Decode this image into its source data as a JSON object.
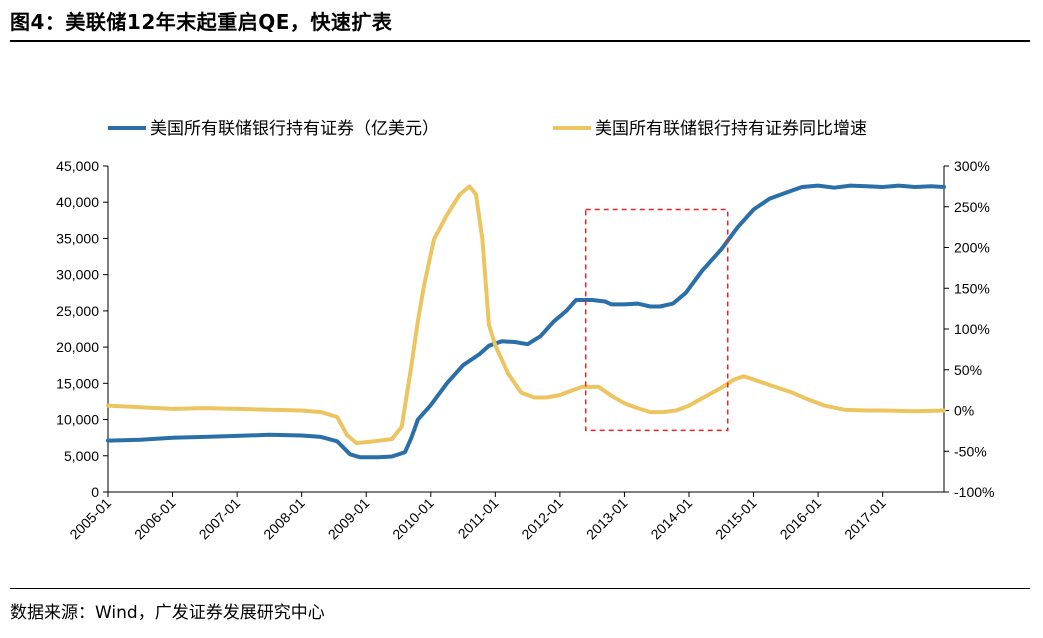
{
  "figure": {
    "title": "图4：美联储12年末起重启QE，快速扩表",
    "source": "数据来源：Wind，广发证券发展研究中心"
  },
  "colors": {
    "holdings": "#2a6fa8",
    "yoy": "#ecc561",
    "highlight_box": "#e8232a",
    "axis": "#000000"
  },
  "chart_data": {
    "type": "line",
    "legend_position": "top",
    "grid": false,
    "x_tick_labels": [
      "2005-01",
      "2006-01",
      "2007-01",
      "2008-01",
      "2009-01",
      "2010-01",
      "2011-01",
      "2012-01",
      "2013-01",
      "2014-01",
      "2015-01",
      "2016-01",
      "2017-01"
    ],
    "x_range": [
      2005.0,
      2017.95
    ],
    "y_left": {
      "range": [
        0,
        45000
      ],
      "tick_labels": [
        "0",
        "5,000",
        "10,000",
        "15,000",
        "20,000",
        "25,000",
        "30,000",
        "35,000",
        "40,000",
        "45,000"
      ]
    },
    "y_right": {
      "range": [
        -100,
        300
      ],
      "tick_labels": [
        "-100%",
        "-50%",
        "0%",
        "50%",
        "100%",
        "150%",
        "200%",
        "250%",
        "300%"
      ]
    },
    "highlight_region": {
      "x": [
        2012.4,
        2014.6
      ],
      "y_left": [
        8500,
        39000
      ],
      "style": "dashed"
    },
    "series": [
      {
        "name": "美国所有联储银行持有证券（亿美元）",
        "axis": "left",
        "points": [
          [
            2005.0,
            7100
          ],
          [
            2005.5,
            7200
          ],
          [
            2006.0,
            7500
          ],
          [
            2006.5,
            7600
          ],
          [
            2007.0,
            7750
          ],
          [
            2007.5,
            7900
          ],
          [
            2008.0,
            7800
          ],
          [
            2008.3,
            7600
          ],
          [
            2008.55,
            7000
          ],
          [
            2008.75,
            5200
          ],
          [
            2008.9,
            4800
          ],
          [
            2009.2,
            4800
          ],
          [
            2009.4,
            4900
          ],
          [
            2009.6,
            5500
          ],
          [
            2009.7,
            7500
          ],
          [
            2009.8,
            10000
          ],
          [
            2010.0,
            12000
          ],
          [
            2010.25,
            15000
          ],
          [
            2010.5,
            17500
          ],
          [
            2010.75,
            19000
          ],
          [
            2010.9,
            20200
          ],
          [
            2011.1,
            20800
          ],
          [
            2011.3,
            20700
          ],
          [
            2011.5,
            20400
          ],
          [
            2011.7,
            21500
          ],
          [
            2011.9,
            23500
          ],
          [
            2012.1,
            25000
          ],
          [
            2012.25,
            26500
          ],
          [
            2012.5,
            26500
          ],
          [
            2012.7,
            26300
          ],
          [
            2012.8,
            25900
          ],
          [
            2013.0,
            25900
          ],
          [
            2013.2,
            26000
          ],
          [
            2013.4,
            25600
          ],
          [
            2013.55,
            25600
          ],
          [
            2013.75,
            26000
          ],
          [
            2013.95,
            27500
          ],
          [
            2014.2,
            30500
          ],
          [
            2014.5,
            33500
          ],
          [
            2014.75,
            36500
          ],
          [
            2015.0,
            39000
          ],
          [
            2015.25,
            40500
          ],
          [
            2015.5,
            41300
          ],
          [
            2015.75,
            42100
          ],
          [
            2016.0,
            42300
          ],
          [
            2016.25,
            42000
          ],
          [
            2016.5,
            42300
          ],
          [
            2016.75,
            42200
          ],
          [
            2017.0,
            42100
          ],
          [
            2017.25,
            42300
          ],
          [
            2017.5,
            42100
          ],
          [
            2017.75,
            42200
          ],
          [
            2017.95,
            42100
          ]
        ]
      },
      {
        "name": "美国所有联储银行持有证券同比增速",
        "axis": "right",
        "points": [
          [
            2005.0,
            6
          ],
          [
            2005.5,
            4
          ],
          [
            2006.0,
            2
          ],
          [
            2006.5,
            3
          ],
          [
            2007.0,
            2
          ],
          [
            2007.5,
            1
          ],
          [
            2008.0,
            0
          ],
          [
            2008.3,
            -2
          ],
          [
            2008.55,
            -8
          ],
          [
            2008.7,
            -30
          ],
          [
            2008.85,
            -40
          ],
          [
            2009.1,
            -38
          ],
          [
            2009.4,
            -35
          ],
          [
            2009.55,
            -20
          ],
          [
            2009.7,
            55
          ],
          [
            2009.8,
            110
          ],
          [
            2009.9,
            155
          ],
          [
            2010.05,
            210
          ],
          [
            2010.25,
            240
          ],
          [
            2010.45,
            265
          ],
          [
            2010.6,
            275
          ],
          [
            2010.7,
            265
          ],
          [
            2010.8,
            210
          ],
          [
            2010.9,
            105
          ],
          [
            2011.0,
            80
          ],
          [
            2011.2,
            45
          ],
          [
            2011.4,
            22
          ],
          [
            2011.6,
            16
          ],
          [
            2011.8,
            16
          ],
          [
            2012.0,
            19
          ],
          [
            2012.2,
            25
          ],
          [
            2012.35,
            29
          ],
          [
            2012.6,
            29
          ],
          [
            2012.8,
            18
          ],
          [
            2013.0,
            9
          ],
          [
            2013.2,
            3
          ],
          [
            2013.4,
            -2
          ],
          [
            2013.6,
            -2
          ],
          [
            2013.8,
            0
          ],
          [
            2014.0,
            6
          ],
          [
            2014.25,
            17
          ],
          [
            2014.5,
            28
          ],
          [
            2014.7,
            38
          ],
          [
            2014.85,
            42
          ],
          [
            2015.0,
            38
          ],
          [
            2015.3,
            30
          ],
          [
            2015.6,
            22
          ],
          [
            2015.8,
            15
          ],
          [
            2016.1,
            6
          ],
          [
            2016.4,
            1
          ],
          [
            2016.75,
            0
          ],
          [
            2017.0,
            0
          ],
          [
            2017.5,
            -1
          ],
          [
            2017.95,
            0
          ]
        ]
      }
    ]
  }
}
